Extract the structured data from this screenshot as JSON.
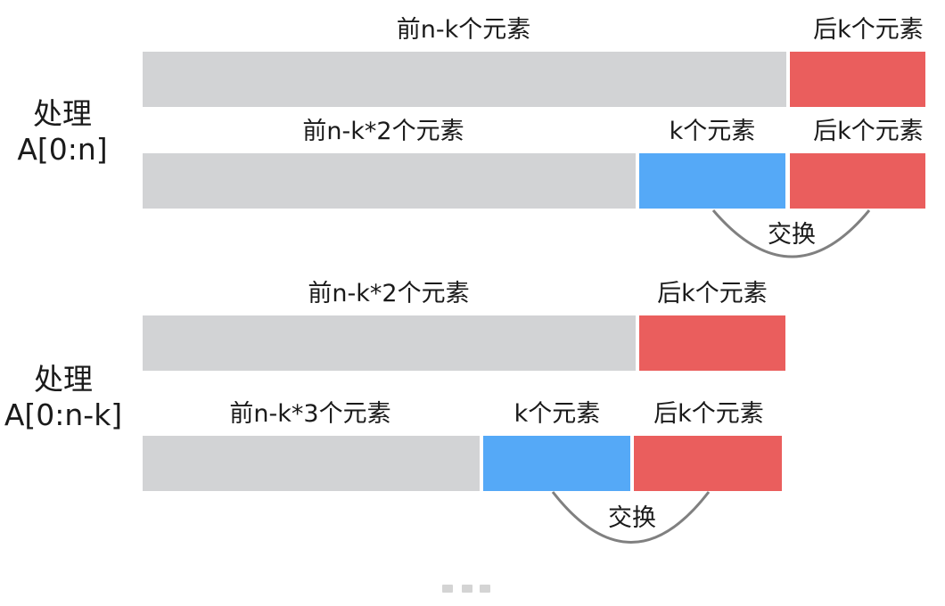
{
  "colors": {
    "gray": "#d2d3d5",
    "blue": "#55a9f7",
    "red": "#ea5e5d",
    "arc": "#808080",
    "dots": "#d4d4d4"
  },
  "section1": {
    "side_line1": "处理",
    "side_line2": "A[0:n]",
    "row1": {
      "gray_label": "前n-k个元素",
      "red_label": "后k个元素"
    },
    "row2": {
      "gray_label": "前n-k*2个元素",
      "blue_label": "k个元素",
      "red_label": "后k个元素"
    },
    "swap_label": "交换"
  },
  "section2": {
    "side_line1": "处理",
    "side_line2": "A[0:n-k]",
    "row1": {
      "gray_label": "前n-k*2个元素",
      "red_label": "后k个元素"
    },
    "row2": {
      "gray_label": "前n-k*3个元素",
      "blue_label": "k个元素",
      "red_label": "后k个元素"
    },
    "swap_label": "交换"
  },
  "ellipsis_icon": "ellipsis-icon"
}
